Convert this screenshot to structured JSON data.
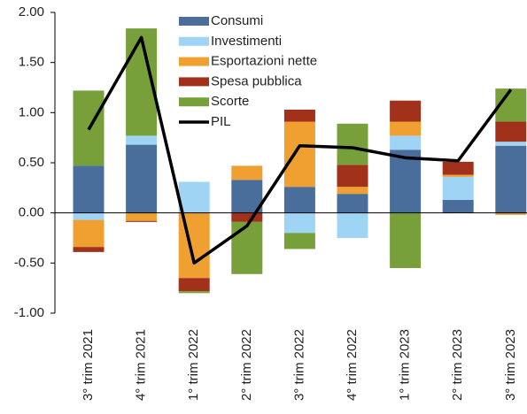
{
  "chart_data": {
    "type": "bar",
    "stacked": true,
    "categories": [
      "3° trim 2021",
      "4° trim 2021",
      "1° trim 2022",
      "2° trim 2022",
      "3° trim 2022",
      "4° trim 2022",
      "1° trim 2023",
      "2° trim 2023",
      "3° trim 2023"
    ],
    "series": [
      {
        "name": "Consumi",
        "color": "#4a6e9b",
        "values": [
          0.47,
          0.68,
          0,
          0.33,
          0.26,
          0.19,
          0.63,
          0.13,
          0.67
        ]
      },
      {
        "name": "Investimenti",
        "color": "#9fd4f5",
        "values": [
          -0.07,
          0.09,
          0.31,
          0,
          -0.2,
          -0.25,
          0.14,
          0.23,
          0.04
        ]
      },
      {
        "name": "Esportazioni nette",
        "color": "#f0a030",
        "values": [
          -0.27,
          -0.08,
          -0.65,
          0.14,
          0.65,
          0.07,
          0.14,
          0.02,
          -0.02
        ]
      },
      {
        "name": "Spesa pubblica",
        "color": "#a2311b",
        "values": [
          -0.05,
          -0.01,
          -0.13,
          -0.09,
          0.12,
          0.22,
          0.21,
          0.13,
          0.2
        ]
      },
      {
        "name": "Scorte",
        "color": "#78a03a",
        "values": [
          0.75,
          1.07,
          -0.02,
          -0.52,
          -0.16,
          0.41,
          -0.55,
          0,
          0.33
        ]
      },
      {
        "name": "PIL",
        "color": "#000000",
        "type": "line",
        "values": [
          0.83,
          1.75,
          -0.5,
          -0.13,
          0.67,
          0.65,
          0.55,
          0.52,
          1.23
        ]
      }
    ],
    "ylim": [
      -1,
      2
    ],
    "yticks": [
      {
        "value": -1,
        "label": "-1.00"
      },
      {
        "value": -0.5,
        "label": "-0.50"
      },
      {
        "value": 0,
        "label": "0.00"
      },
      {
        "value": 0.5,
        "label": "0.50"
      },
      {
        "value": 1,
        "label": "1.00"
      },
      {
        "value": 1.5,
        "label": "1.50"
      },
      {
        "value": 2,
        "label": "2.00"
      }
    ]
  }
}
